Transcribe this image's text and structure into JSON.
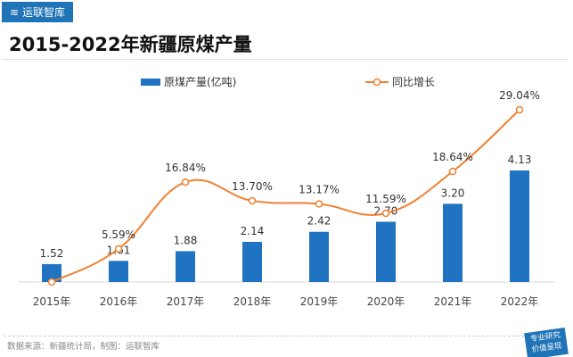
{
  "brand": "运联智库",
  "source": "数据来源：新疆统计局，制图：运联智库",
  "badge": [
    "专业研究",
    "价值呈现"
  ],
  "colors": {
    "bar": "#1f73c1",
    "line": "#f08030",
    "brand": "#1f73b7"
  },
  "chart_data": {
    "type": "bar+line",
    "title": "2015-2022年新疆原煤产量",
    "categories": [
      "2015年",
      "2016年",
      "2017年",
      "2018年",
      "2019年",
      "2020年",
      "2021年",
      "2022年"
    ],
    "series": [
      {
        "name": "原煤产量(亿吨)",
        "type": "bar",
        "axis": "left",
        "values": [
          1.52,
          1.61,
          1.88,
          2.14,
          2.42,
          2.7,
          3.2,
          4.13
        ],
        "labels": [
          "1.52",
          "1.61",
          "1.88",
          "2.14",
          "2.42",
          "2.70",
          "3.20",
          "4.13"
        ]
      },
      {
        "name": "同比增长",
        "type": "line",
        "axis": "right",
        "values": [
          0,
          5.59,
          16.84,
          13.7,
          13.17,
          11.59,
          18.64,
          29.04
        ],
        "labels": [
          "",
          "5.59%",
          "16.84%",
          "13.70%",
          "13.17%",
          "11.59%",
          "18.64%",
          "29.04%"
        ]
      }
    ],
    "ylim_left": [
      1.02,
      4.4
    ],
    "ylim_right": [
      0,
      32
    ],
    "legend": "top-center",
    "grid": false
  }
}
